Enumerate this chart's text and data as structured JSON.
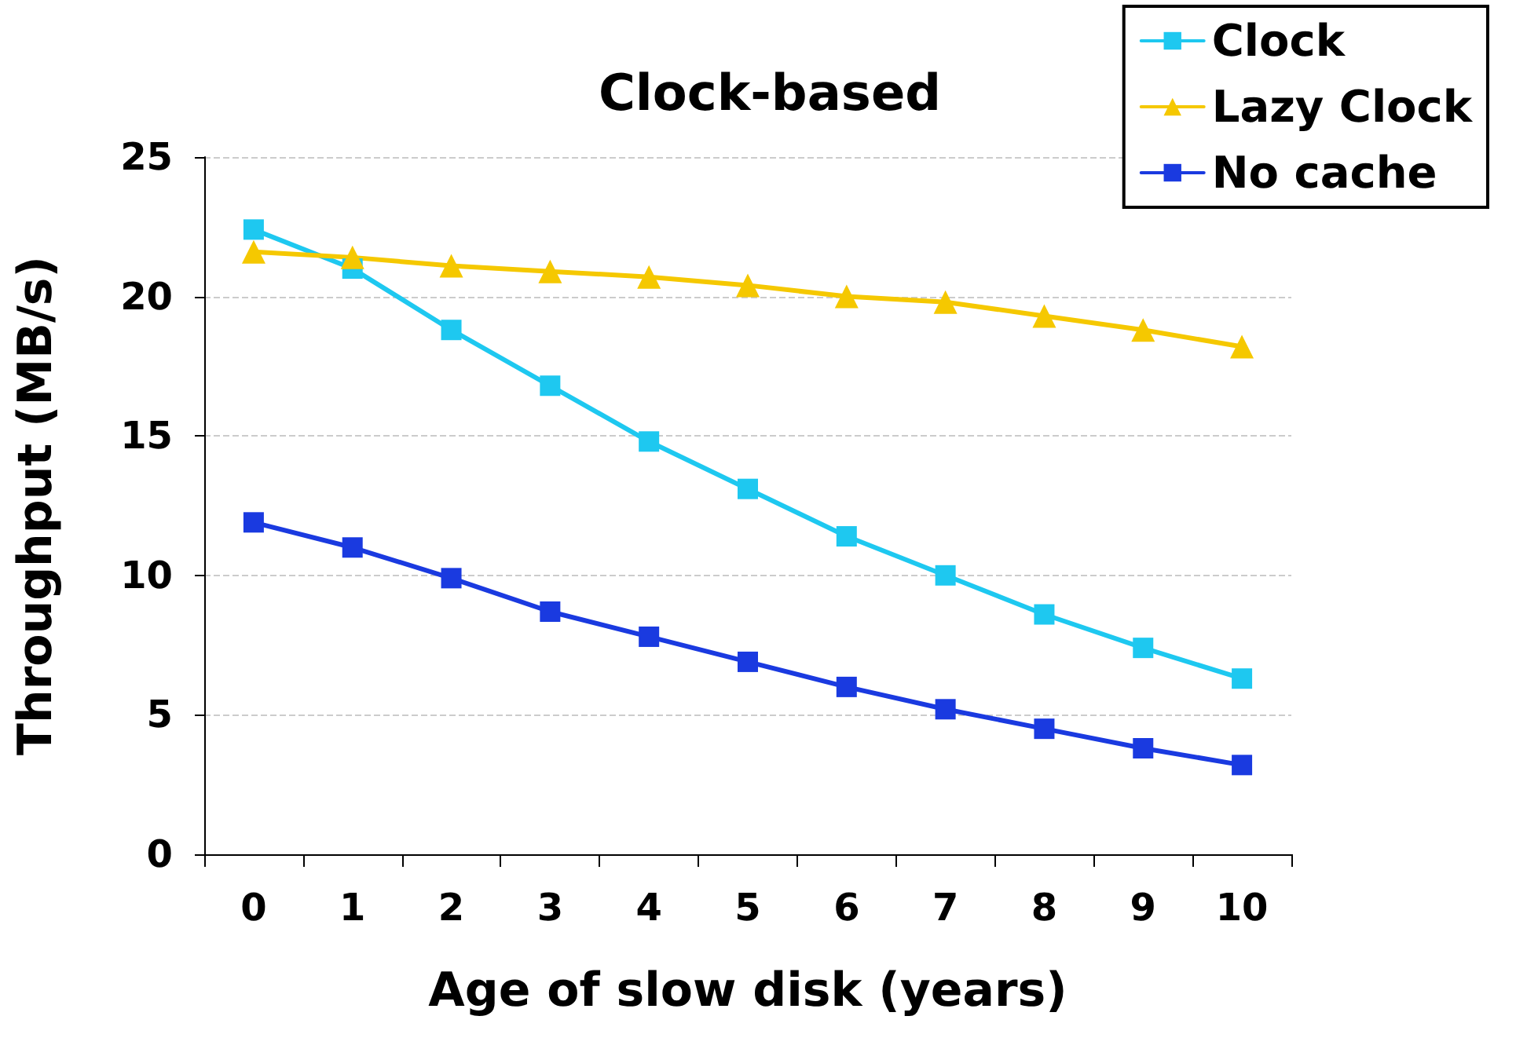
{
  "chart_data": {
    "type": "line",
    "title": "Clock-based",
    "xlabel": "Age of slow disk (years)",
    "ylabel": "Throughput (MB/s)",
    "categories": [
      "0",
      "1",
      "2",
      "3",
      "4",
      "5",
      "6",
      "7",
      "8",
      "9",
      "10"
    ],
    "series": [
      {
        "name": "Clock",
        "color": "#1ec8f0",
        "marker": "square",
        "values": [
          22.4,
          21.0,
          18.8,
          16.8,
          14.8,
          13.1,
          11.4,
          10.0,
          8.6,
          7.4,
          6.3
        ]
      },
      {
        "name": "Lazy Clock",
        "color": "#f5c800",
        "marker": "triangle",
        "values": [
          21.6,
          21.4,
          21.1,
          20.9,
          20.7,
          20.4,
          20.0,
          19.8,
          19.3,
          18.8,
          18.2
        ]
      },
      {
        "name": "No cache",
        "color": "#1a3ae0",
        "marker": "square",
        "values": [
          11.9,
          11.0,
          9.9,
          8.7,
          7.8,
          6.9,
          6.0,
          5.2,
          4.5,
          3.8,
          3.2
        ]
      }
    ],
    "ylim": [
      0,
      25
    ],
    "yticks": [
      0,
      5,
      10,
      15,
      20,
      25
    ],
    "grid": "y",
    "legend": "top right",
    "line_style": "solid"
  }
}
